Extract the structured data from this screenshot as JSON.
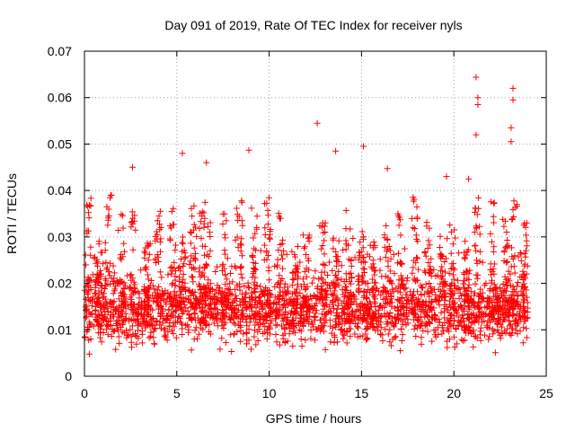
{
  "chart_data": {
    "type": "scatter",
    "title": "Day 091 of 2019, Rate Of TEC Index for receiver nyls",
    "xlabel": "GPS time / hours",
    "ylabel": "ROTI / TECUs",
    "xlim": [
      0,
      25
    ],
    "ylim": [
      0,
      0.07
    ],
    "xticks": [
      "0",
      "5",
      "10",
      "15",
      "20",
      "25"
    ],
    "yticks": [
      "0",
      "0.01",
      "0.02",
      "0.03",
      "0.04",
      "0.05",
      "0.06",
      "0.07"
    ],
    "grid": true,
    "marker": "+",
    "color": "#ff0000",
    "data_range_hours": [
      0,
      24
    ],
    "baseline_range": [
      0.004,
      0.03
    ],
    "typical_value": 0.014,
    "notable_points": [
      {
        "x": 2.6,
        "y": 0.045
      },
      {
        "x": 5.3,
        "y": 0.048
      },
      {
        "x": 6.6,
        "y": 0.046
      },
      {
        "x": 8.9,
        "y": 0.0487
      },
      {
        "x": 12.6,
        "y": 0.0545
      },
      {
        "x": 13.6,
        "y": 0.0485
      },
      {
        "x": 15.1,
        "y": 0.0495
      },
      {
        "x": 16.4,
        "y": 0.0447
      },
      {
        "x": 19.6,
        "y": 0.043
      },
      {
        "x": 21.2,
        "y": 0.0644
      },
      {
        "x": 21.3,
        "y": 0.06
      },
      {
        "x": 21.3,
        "y": 0.0585
      },
      {
        "x": 21.2,
        "y": 0.052
      },
      {
        "x": 23.2,
        "y": 0.062
      },
      {
        "x": 23.2,
        "y": 0.0595
      },
      {
        "x": 23.1,
        "y": 0.0535
      },
      {
        "x": 23.1,
        "y": 0.0505
      },
      {
        "x": 20.8,
        "y": 0.0425
      }
    ]
  }
}
